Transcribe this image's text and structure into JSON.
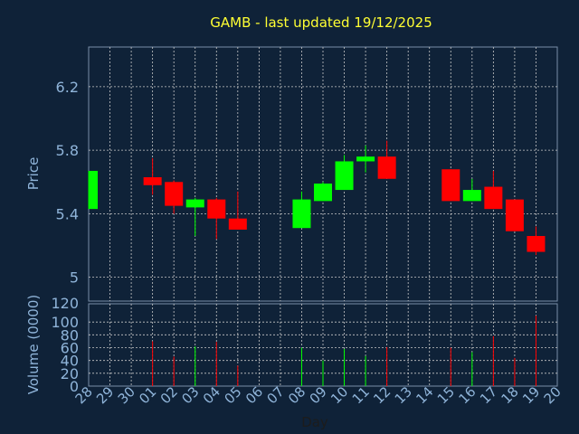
{
  "chart_data": {
    "type": "candlestick",
    "title": "GAMB - last updated 19/12/2025",
    "xlabel": "Day",
    "ylabel_price": "Price",
    "ylabel_volume": "Volume (0000)",
    "categories": [
      "28",
      "29",
      "30",
      "01",
      "02",
      "03",
      "04",
      "05",
      "06",
      "07",
      "08",
      "09",
      "10",
      "11",
      "12",
      "13",
      "14",
      "15",
      "16",
      "17",
      "18",
      "19",
      "20"
    ],
    "price_ylim": [
      4.85,
      6.45
    ],
    "price_ticks": [
      "6.2",
      "5.8",
      "5.4",
      "5"
    ],
    "price_tick_values": [
      6.2,
      5.8,
      5.4,
      5.0
    ],
    "volume_ylim": [
      0,
      120
    ],
    "volume_ticks": [
      "120",
      "100",
      "80",
      "60",
      "40",
      "20",
      "0"
    ],
    "volume_tick_values": [
      120,
      100,
      80,
      60,
      40,
      20,
      0
    ],
    "candles": [
      {
        "day": "28",
        "open": 5.43,
        "high": 5.67,
        "low": 5.43,
        "close": 5.67,
        "volume": 0
      },
      {
        "day": "01",
        "open": 5.63,
        "high": 5.75,
        "low": 5.52,
        "close": 5.58,
        "volume": 70
      },
      {
        "day": "02",
        "open": 5.6,
        "high": 5.61,
        "low": 5.4,
        "close": 5.45,
        "volume": 46
      },
      {
        "day": "03",
        "open": 5.44,
        "high": 5.5,
        "low": 5.26,
        "close": 5.49,
        "volume": 62
      },
      {
        "day": "04",
        "open": 5.49,
        "high": 5.5,
        "low": 5.24,
        "close": 5.37,
        "volume": 69
      },
      {
        "day": "05",
        "open": 5.37,
        "high": 5.54,
        "low": 5.3,
        "close": 5.3,
        "volume": 32
      },
      {
        "day": "08",
        "open": 5.31,
        "high": 5.54,
        "low": 5.31,
        "close": 5.49,
        "volume": 60
      },
      {
        "day": "09",
        "open": 5.48,
        "high": 5.6,
        "low": 5.48,
        "close": 5.59,
        "volume": 40
      },
      {
        "day": "10",
        "open": 5.55,
        "high": 5.77,
        "low": 5.55,
        "close": 5.73,
        "volume": 58
      },
      {
        "day": "11",
        "open": 5.73,
        "high": 5.83,
        "low": 5.66,
        "close": 5.76,
        "volume": 47
      },
      {
        "day": "12",
        "open": 5.76,
        "high": 5.86,
        "low": 5.62,
        "close": 5.62,
        "volume": 61
      },
      {
        "day": "15",
        "open": 5.68,
        "high": 5.68,
        "low": 5.48,
        "close": 5.48,
        "volume": 60
      },
      {
        "day": "16",
        "open": 5.48,
        "high": 5.62,
        "low": 5.48,
        "close": 5.55,
        "volume": 53
      },
      {
        "day": "17",
        "open": 5.57,
        "high": 5.67,
        "low": 5.43,
        "close": 5.43,
        "volume": 78
      },
      {
        "day": "18",
        "open": 5.49,
        "high": 5.49,
        "low": 5.29,
        "close": 5.29,
        "volume": 44
      },
      {
        "day": "19",
        "open": 5.26,
        "high": 5.32,
        "low": 5.14,
        "close": 5.16,
        "volume": 110
      }
    ],
    "grid": true,
    "colors": {
      "background": "#0f2238",
      "plot_border": "#7a8ea8",
      "grid": "#c8c8c8",
      "title": "#ffff33",
      "label": "#8fb4d9",
      "up": "#00ff00",
      "down": "#ff0000"
    }
  }
}
